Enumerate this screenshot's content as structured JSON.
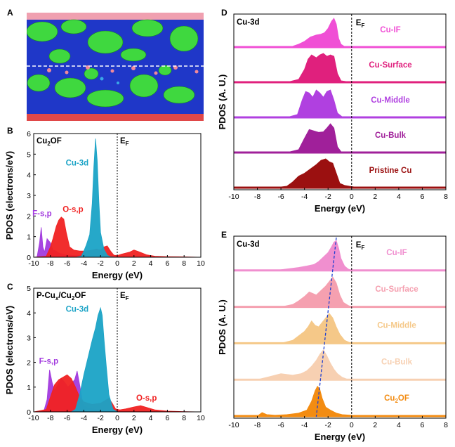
{
  "panels": [
    {
      "id": "A",
      "label": "A"
    },
    {
      "id": "B",
      "label": "B"
    },
    {
      "id": "C",
      "label": "C"
    },
    {
      "id": "D",
      "label": "D"
    },
    {
      "id": "E",
      "label": "E"
    }
  ],
  "ef_label": "E",
  "ef_sub": "F",
  "chart_data": [
    {
      "id": "B",
      "type": "area",
      "title": "Cu2OF",
      "title_parts": [
        "Cu",
        "2",
        "OF"
      ],
      "xlabel": "Energy (eV)",
      "ylabel": "PDOS (electrons/eV)",
      "xlim": [
        -10,
        10
      ],
      "ylim": [
        0,
        6
      ],
      "xticks": [
        -10,
        -8,
        -6,
        -4,
        -2,
        0,
        2,
        4,
        6,
        8,
        10
      ],
      "yticks": [
        0,
        1,
        2,
        3,
        4,
        5,
        6
      ],
      "series": [
        {
          "name": "F-s,p",
          "color": "#a23bde",
          "x": [
            -10,
            -9.6,
            -9.3,
            -9.1,
            -8.9,
            -8.7,
            -8.4,
            -8.0,
            -7.7,
            -7.3,
            -7.0,
            -6.5,
            -6.0,
            -5.0,
            -3.0,
            -1.0,
            0,
            1,
            3,
            10
          ],
          "y": [
            0,
            0.02,
            0.7,
            1.45,
            0.5,
            0.25,
            0.9,
            0.7,
            0.35,
            0.3,
            0.2,
            0.15,
            0.1,
            0.08,
            0.1,
            0.05,
            0.02,
            0.02,
            0.02,
            0
          ]
        },
        {
          "name": "O-s,p",
          "color": "#f02222",
          "x": [
            -10,
            -8.5,
            -8.0,
            -7.7,
            -7.3,
            -7.0,
            -6.7,
            -6.4,
            -6.1,
            -5.7,
            -5.2,
            -4.5,
            -3.8,
            -3.0,
            -2.5,
            -2.0,
            -1.6,
            -1.2,
            -0.8,
            -0.4,
            0,
            0.5,
            1.0,
            1.5,
            2.0,
            2.5,
            3.0,
            3.5,
            4.5,
            6.0,
            8.0,
            10
          ],
          "y": [
            0,
            0.05,
            0.5,
            0.9,
            1.5,
            1.8,
            1.95,
            1.85,
            1.2,
            0.5,
            0.35,
            0.3,
            0.3,
            0.35,
            0.4,
            0.35,
            0.5,
            0.55,
            0.3,
            0.1,
            0.08,
            0.15,
            0.2,
            0.25,
            0.35,
            0.28,
            0.2,
            0.12,
            0.05,
            0.03,
            0.02,
            0
          ]
        },
        {
          "name": "Cu-3d",
          "color": "#1aa3c6",
          "x": [
            -10,
            -5.0,
            -4.3,
            -4.0,
            -3.7,
            -3.3,
            -3.0,
            -2.8,
            -2.6,
            -2.4,
            -2.2,
            -2.0,
            -1.6,
            -1.2,
            -0.8,
            0,
            10
          ],
          "y": [
            0,
            0,
            0.05,
            0.3,
            0.6,
            1.1,
            2.6,
            4.4,
            5.75,
            4.7,
            2.7,
            1.2,
            0.4,
            0.1,
            0.02,
            0,
            0
          ]
        }
      ],
      "labels": [
        {
          "text": "Cu-3d",
          "color": "#1aa3c6"
        },
        {
          "text": "F-s,p",
          "color": "#a23bde"
        },
        {
          "text": "O-s,p",
          "color": "#f02222"
        }
      ]
    },
    {
      "id": "C",
      "type": "area",
      "title": "P-Cux/Cu2OF",
      "title_parts": [
        "P-Cu",
        "x",
        "/Cu",
        "2",
        "OF"
      ],
      "xlabel": "Energy (eV)",
      "ylabel": "PDOS (electrons/eV)",
      "xlim": [
        -10,
        10
      ],
      "ylim": [
        0,
        5
      ],
      "xticks": [
        -10,
        -8,
        -6,
        -4,
        -2,
        0,
        2,
        4,
        6,
        8,
        10
      ],
      "yticks": [
        0,
        1,
        2,
        3,
        4,
        5
      ],
      "series": [
        {
          "name": "F-s,p",
          "color": "#a23bde",
          "x": [
            -10,
            -8.8,
            -8.4,
            -8.1,
            -7.8,
            -7.5,
            -7.1,
            -6.7,
            -6.3,
            -5.9,
            -5.5,
            -5.1,
            -4.8,
            -4.5,
            -4.1,
            -3.5,
            -2.5,
            -1.0,
            0,
            10
          ],
          "y": [
            0,
            0.02,
            0.5,
            1.7,
            1.2,
            0.85,
            1.1,
            1.35,
            1.2,
            1.0,
            1.15,
            1.3,
            1.65,
            1.1,
            0.3,
            0.15,
            0.1,
            0.05,
            0.02,
            0
          ]
        },
        {
          "name": "O-s,p",
          "color": "#f02222",
          "x": [
            -10,
            -8.5,
            -8.0,
            -7.5,
            -7.0,
            -6.5,
            -6.0,
            -5.5,
            -5.0,
            -4.5,
            -4.0,
            -3.0,
            -2.0,
            -1.5,
            -1.0,
            -0.6,
            -0.2,
            0.3,
            1.0,
            2.0,
            2.8,
            3.5,
            4.5,
            6.0,
            8.0,
            10
          ],
          "y": [
            0,
            0.1,
            0.6,
            1.1,
            1.3,
            1.4,
            1.5,
            1.35,
            1.0,
            0.6,
            0.4,
            0.3,
            0.35,
            0.45,
            0.55,
            0.35,
            0.12,
            0.08,
            0.12,
            0.2,
            0.25,
            0.18,
            0.08,
            0.03,
            0.01,
            0
          ]
        },
        {
          "name": "Cu-3d",
          "color": "#1aa3c6",
          "x": [
            -10,
            -5.5,
            -5.0,
            -4.5,
            -4.0,
            -3.5,
            -3.0,
            -2.6,
            -2.3,
            -2.0,
            -1.8,
            -1.6,
            -1.3,
            -1.0,
            -0.5,
            0,
            10
          ],
          "y": [
            0,
            0,
            0.1,
            0.7,
            1.5,
            2.2,
            2.9,
            3.4,
            3.9,
            4.2,
            3.9,
            3.0,
            1.8,
            0.7,
            0.1,
            0,
            0
          ]
        }
      ],
      "labels": [
        {
          "text": "Cu-3d",
          "color": "#1aa3c6"
        },
        {
          "text": "F-s,p",
          "color": "#a23bde"
        },
        {
          "text": "O-s,p",
          "color": "#f02222"
        }
      ]
    },
    {
      "id": "D",
      "type": "area",
      "title": "Cu-3d",
      "xlabel": "Energy (eV)",
      "ylabel": "PDOS (A. U.)",
      "xlim": [
        -10,
        8
      ],
      "xticks": [
        -10,
        -8,
        -6,
        -4,
        -2,
        0,
        2,
        4,
        6,
        8
      ],
      "series": [
        {
          "name": "Cu-IF",
          "color": "#f04fd5",
          "x": [
            -10,
            -6,
            -5.0,
            -4.5,
            -4.0,
            -3.5,
            -3.0,
            -2.6,
            -2.3,
            -2.0,
            -1.7,
            -1.5,
            -1.3,
            -1.1,
            -0.9,
            -0.6,
            0,
            8
          ],
          "y": [
            0,
            0,
            0.03,
            0.1,
            0.2,
            0.35,
            0.42,
            0.45,
            0.5,
            0.65,
            0.9,
            1.0,
            0.8,
            0.3,
            0.1,
            0.02,
            0,
            0
          ]
        },
        {
          "name": "Cu-Surface",
          "color": "#e0207d",
          "x": [
            -10,
            -5.5,
            -4.5,
            -4.0,
            -3.7,
            -3.4,
            -3.0,
            -2.7,
            -2.4,
            -2.1,
            -1.8,
            -1.5,
            -1.2,
            -0.9,
            0,
            8
          ],
          "y": [
            0,
            0,
            0.1,
            0.45,
            0.8,
            0.95,
            0.85,
            0.95,
            1.0,
            0.9,
            0.95,
            0.9,
            0.3,
            0.05,
            0,
            0
          ]
        },
        {
          "name": "Cu-Middle",
          "color": "#b040e0",
          "x": [
            -10,
            -5.5,
            -4.6,
            -4.2,
            -3.9,
            -3.6,
            -3.3,
            -3.0,
            -2.7,
            -2.4,
            -2.1,
            -1.8,
            -1.5,
            -1.2,
            -0.8,
            0,
            8
          ],
          "y": [
            0,
            0,
            0.1,
            0.6,
            0.9,
            0.85,
            0.7,
            0.95,
            0.85,
            0.7,
            0.9,
            0.95,
            0.6,
            0.15,
            0.02,
            0,
            0
          ]
        },
        {
          "name": "Cu-Bulk",
          "color": "#a0209a",
          "x": [
            -10,
            -5.5,
            -4.5,
            -4.0,
            -3.6,
            -3.2,
            -2.8,
            -2.4,
            -2.1,
            -1.8,
            -1.5,
            -1.2,
            -0.9,
            0,
            8
          ],
          "y": [
            0,
            0,
            0.1,
            0.5,
            0.8,
            0.75,
            0.7,
            0.72,
            0.85,
            1.0,
            0.85,
            0.2,
            0.03,
            0,
            0
          ]
        },
        {
          "name": "Pristine Cu",
          "color": "#9b1010",
          "x": [
            -10,
            -6.5,
            -5.5,
            -5.0,
            -4.5,
            -4.0,
            -3.5,
            -3.0,
            -2.6,
            -2.2,
            -1.9,
            -1.6,
            -1.3,
            -1.0,
            -0.6,
            -0.2,
            0.3,
            1.0,
            8
          ],
          "y": [
            0,
            0,
            0.05,
            0.2,
            0.4,
            0.5,
            0.65,
            0.8,
            0.95,
            1.0,
            0.9,
            0.85,
            0.5,
            0.15,
            0.08,
            0.05,
            0.02,
            0,
            0
          ]
        }
      ]
    },
    {
      "id": "E",
      "type": "area",
      "title": "Cu-3d",
      "xlabel": "Energy (eV)",
      "ylabel": "PDOS (A. U.)",
      "xlim": [
        -10,
        8
      ],
      "xticks": [
        -10,
        -8,
        -6,
        -4,
        -2,
        0,
        2,
        4,
        6,
        8
      ],
      "trend_line": {
        "x": [
          -1.3,
          -3.0
        ],
        "color": "#1e3fd0"
      },
      "series": [
        {
          "name": "Cu-IF",
          "color": "#f08fcf",
          "x": [
            -10,
            -6.5,
            -5.5,
            -4.5,
            -3.8,
            -3.2,
            -2.8,
            -2.4,
            -2.0,
            -1.7,
            -1.5,
            -1.3,
            -1.1,
            -0.9,
            -0.6,
            -0.3,
            0,
            8
          ],
          "y": [
            0,
            0,
            0.05,
            0.1,
            0.15,
            0.2,
            0.3,
            0.45,
            0.6,
            0.8,
            0.95,
            1.0,
            0.75,
            0.4,
            0.15,
            0.05,
            0,
            0
          ]
        },
        {
          "name": "Cu-Surface",
          "color": "#f5a0b0",
          "x": [
            -10,
            -6.0,
            -5.0,
            -4.5,
            -4.0,
            -3.6,
            -3.3,
            -3.0,
            -2.6,
            -2.2,
            -1.9,
            -1.6,
            -1.3,
            -1.0,
            -0.7,
            -0.3,
            0,
            8
          ],
          "y": [
            0,
            0,
            0.08,
            0.2,
            0.35,
            0.5,
            0.45,
            0.4,
            0.55,
            0.7,
            0.85,
            1.0,
            0.8,
            0.4,
            0.15,
            0.05,
            0,
            0
          ]
        },
        {
          "name": "Cu-Middle",
          "color": "#f5c888",
          "x": [
            -10,
            -6.0,
            -5.0,
            -4.5,
            -4.0,
            -3.7,
            -3.4,
            -3.1,
            -2.8,
            -2.5,
            -2.2,
            -1.9,
            -1.6,
            -1.3,
            -1.0,
            -0.6,
            -0.2,
            0,
            8
          ],
          "y": [
            0,
            0,
            0.1,
            0.25,
            0.4,
            0.55,
            0.75,
            0.6,
            0.55,
            0.7,
            0.85,
            1.0,
            0.85,
            0.55,
            0.3,
            0.1,
            0.03,
            0,
            0
          ]
        },
        {
          "name": "Cu-Bulk",
          "color": "#f7d0b2",
          "x": [
            -10,
            -8.0,
            -7.0,
            -6.0,
            -5.0,
            -4.3,
            -3.8,
            -3.4,
            -3.0,
            -2.7,
            -2.4,
            -2.1,
            -1.8,
            -1.5,
            -1.2,
            -0.8,
            -0.4,
            0,
            8
          ],
          "y": [
            0,
            0,
            0.1,
            0.2,
            0.15,
            0.2,
            0.3,
            0.45,
            0.65,
            0.85,
            1.0,
            0.8,
            0.55,
            0.35,
            0.2,
            0.08,
            0.02,
            0,
            0
          ]
        },
        {
          "name": "Cu2OF",
          "color": "#f38c12",
          "label_parts": [
            "Cu",
            "2",
            "OF"
          ],
          "x": [
            -10,
            -8.0,
            -7.6,
            -7.2,
            -6.5,
            -5.5,
            -4.5,
            -3.8,
            -3.4,
            -3.1,
            -2.9,
            -2.7,
            -2.5,
            -2.2,
            -1.8,
            -1.3,
            -0.8,
            0,
            1.0,
            8
          ],
          "y": [
            0,
            0,
            0.12,
            0.05,
            0.03,
            0.05,
            0.1,
            0.2,
            0.5,
            0.85,
            1.0,
            0.9,
            0.6,
            0.3,
            0.2,
            0.1,
            0.05,
            0.03,
            0.02,
            0
          ]
        }
      ]
    }
  ],
  "panel_a": {
    "description_colors": {
      "blue": "#1f37c8",
      "green": "#3ee03e",
      "red": "#e03a3a",
      "pink": "#f0a0b0"
    }
  }
}
